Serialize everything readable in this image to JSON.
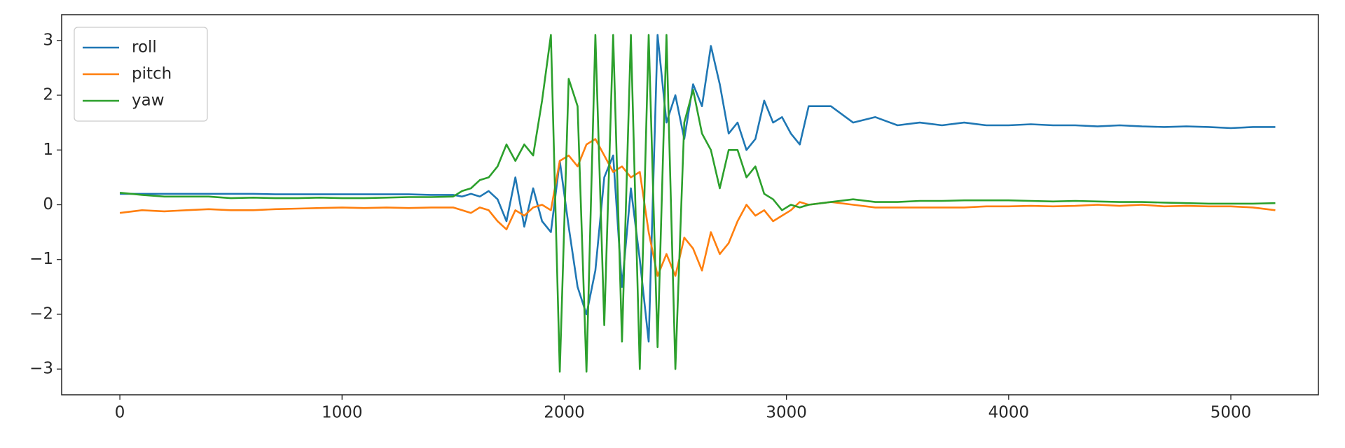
{
  "chart_data": {
    "type": "line",
    "x": [
      0,
      100,
      200,
      300,
      400,
      500,
      600,
      700,
      800,
      900,
      1000,
      1100,
      1200,
      1300,
      1400,
      1500,
      1540,
      1580,
      1620,
      1660,
      1700,
      1740,
      1780,
      1820,
      1860,
      1900,
      1940,
      1980,
      2020,
      2060,
      2100,
      2140,
      2180,
      2220,
      2260,
      2300,
      2340,
      2380,
      2420,
      2460,
      2500,
      2540,
      2580,
      2620,
      2660,
      2700,
      2740,
      2780,
      2820,
      2860,
      2900,
      2940,
      2980,
      3020,
      3060,
      3100,
      3200,
      3300,
      3400,
      3500,
      3600,
      3700,
      3800,
      3900,
      4000,
      4100,
      4200,
      4300,
      4400,
      4500,
      4600,
      4700,
      4800,
      4900,
      5000,
      5100,
      5200
    ],
    "series": [
      {
        "name": "roll",
        "color": "#1f77b4",
        "values": [
          0.2,
          0.2,
          0.2,
          0.2,
          0.2,
          0.2,
          0.2,
          0.19,
          0.19,
          0.19,
          0.19,
          0.19,
          0.19,
          0.19,
          0.18,
          0.18,
          0.15,
          0.2,
          0.15,
          0.25,
          0.1,
          -0.3,
          0.5,
          -0.4,
          0.3,
          -0.3,
          -0.5,
          0.8,
          -0.4,
          -1.5,
          -2.0,
          -1.2,
          0.5,
          0.9,
          -1.5,
          0.3,
          -1.0,
          -2.5,
          3.1,
          1.5,
          2.0,
          1.2,
          2.2,
          1.8,
          2.9,
          2.2,
          1.3,
          1.5,
          1.0,
          1.2,
          1.9,
          1.5,
          1.6,
          1.3,
          1.1,
          1.8,
          1.8,
          1.5,
          1.6,
          1.45,
          1.5,
          1.45,
          1.5,
          1.45,
          1.45,
          1.47,
          1.45,
          1.45,
          1.43,
          1.45,
          1.43,
          1.42,
          1.43,
          1.42,
          1.4,
          1.42,
          1.42
        ]
      },
      {
        "name": "pitch",
        "color": "#ff7f0e",
        "values": [
          -0.15,
          -0.1,
          -0.12,
          -0.1,
          -0.08,
          -0.1,
          -0.1,
          -0.08,
          -0.07,
          -0.06,
          -0.05,
          -0.06,
          -0.05,
          -0.06,
          -0.05,
          -0.05,
          -0.1,
          -0.15,
          -0.05,
          -0.1,
          -0.3,
          -0.45,
          -0.1,
          -0.2,
          -0.05,
          0.0,
          -0.1,
          0.8,
          0.9,
          0.7,
          1.1,
          1.2,
          0.9,
          0.6,
          0.7,
          0.5,
          0.6,
          -0.5,
          -1.3,
          -0.9,
          -1.3,
          -0.6,
          -0.8,
          -1.2,
          -0.5,
          -0.9,
          -0.7,
          -0.3,
          0.0,
          -0.2,
          -0.1,
          -0.3,
          -0.2,
          -0.1,
          0.05,
          0.0,
          0.05,
          0.0,
          -0.05,
          -0.05,
          -0.05,
          -0.05,
          -0.05,
          -0.03,
          -0.03,
          -0.02,
          -0.03,
          -0.02,
          0.0,
          -0.02,
          0.0,
          -0.03,
          -0.02,
          -0.03,
          -0.03,
          -0.05,
          -0.1
        ]
      },
      {
        "name": "yaw",
        "color": "#2ca02c",
        "values": [
          0.22,
          0.18,
          0.15,
          0.15,
          0.15,
          0.12,
          0.13,
          0.12,
          0.12,
          0.13,
          0.12,
          0.12,
          0.13,
          0.14,
          0.14,
          0.15,
          0.25,
          0.3,
          0.45,
          0.5,
          0.7,
          1.1,
          0.8,
          1.1,
          0.9,
          1.9,
          3.1,
          -3.05,
          2.3,
          1.8,
          -3.05,
          3.1,
          -2.2,
          3.1,
          -2.5,
          3.1,
          -3.0,
          3.1,
          -2.6,
          3.1,
          -3.0,
          1.5,
          2.1,
          1.3,
          1.0,
          0.3,
          1.0,
          1.0,
          0.5,
          0.7,
          0.2,
          0.1,
          -0.1,
          0.0,
          -0.05,
          0.0,
          0.05,
          0.1,
          0.05,
          0.05,
          0.07,
          0.07,
          0.08,
          0.08,
          0.08,
          0.07,
          0.06,
          0.07,
          0.06,
          0.05,
          0.05,
          0.04,
          0.03,
          0.02,
          0.02,
          0.02,
          0.03
        ]
      }
    ],
    "xlim": [
      -262,
      5394
    ],
    "ylim": [
      -3.47,
      3.47
    ],
    "xticks": [
      0,
      1000,
      2000,
      3000,
      4000,
      5000
    ],
    "yticks": [
      {
        "value": -3,
        "label": "−3"
      },
      {
        "value": -2,
        "label": "−2"
      },
      {
        "value": -1,
        "label": "−1"
      },
      0,
      1,
      2,
      3
    ],
    "legend": "upper left",
    "grid": false
  }
}
